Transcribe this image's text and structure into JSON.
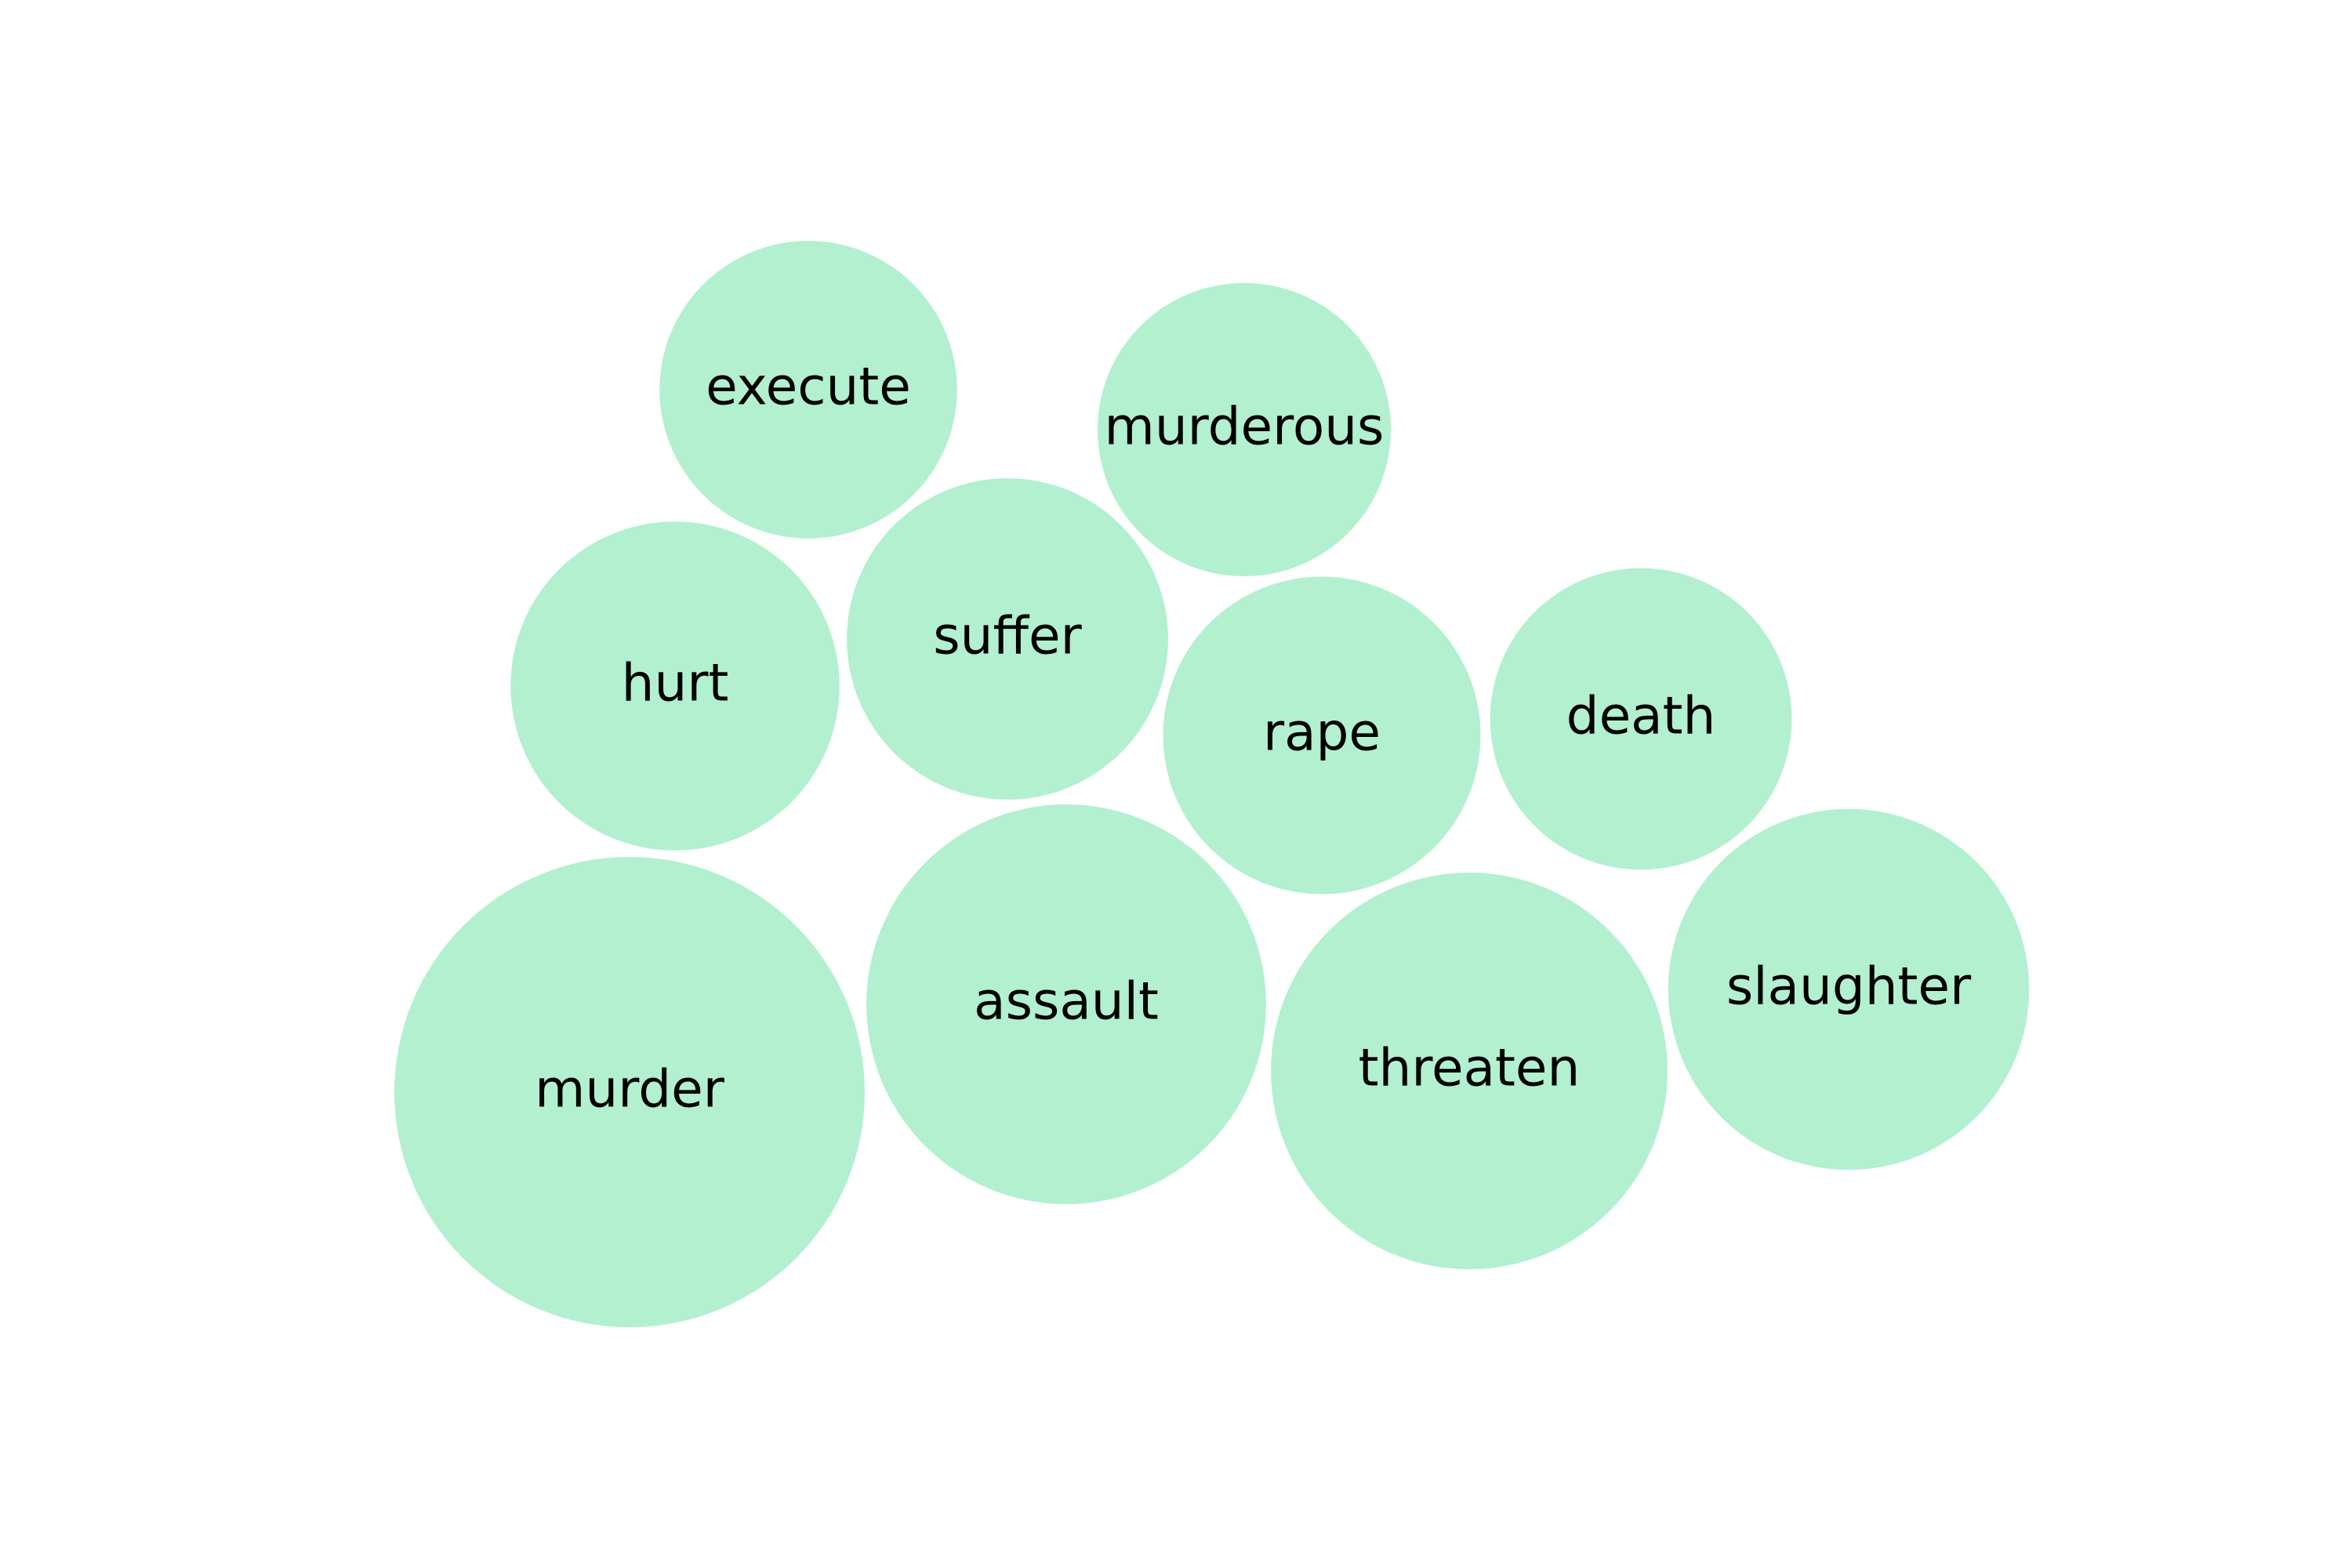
{
  "chart_data": {
    "type": "bubble",
    "title": "",
    "bubble_color": "#b2f0d0",
    "label_color": "#000000",
    "items": [
      {
        "label": "murder",
        "size": 4.5
      },
      {
        "label": "assault",
        "size": 3.25
      },
      {
        "label": "threaten",
        "size": 3.2
      },
      {
        "label": "slaughter",
        "size": 2.65
      },
      {
        "label": "hurt",
        "size": 2.2
      },
      {
        "label": "suffer",
        "size": 2.1
      },
      {
        "label": "rape",
        "size": 2.05
      },
      {
        "label": "death",
        "size": 1.85
      },
      {
        "label": "execute",
        "size": 1.8
      },
      {
        "label": "murderous",
        "size": 1.75
      }
    ]
  }
}
